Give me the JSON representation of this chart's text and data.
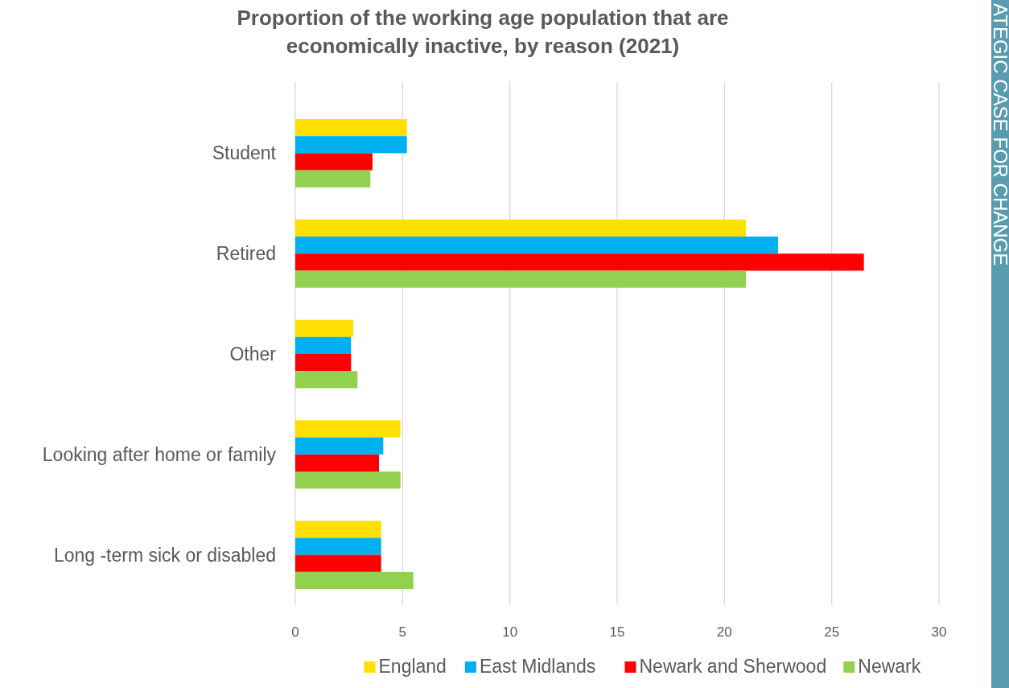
{
  "chart_data": {
    "type": "bar",
    "orientation": "horizontal",
    "title": "Proportion of the working age population that are economically inactive, by reason (2021)",
    "categories": [
      "Student",
      "Retired",
      "Other",
      "Looking after home or family",
      "Long -term sick or disabled"
    ],
    "series": [
      {
        "name": "England",
        "color": "#ffe000",
        "values": [
          5.2,
          21.0,
          2.7,
          4.9,
          4.0
        ]
      },
      {
        "name": "East Midlands",
        "color": "#00b0f0",
        "values": [
          5.2,
          22.5,
          2.6,
          4.1,
          4.0
        ]
      },
      {
        "name": "Newark and Sherwood",
        "color": "#ff0000",
        "values": [
          3.6,
          26.5,
          2.6,
          3.9,
          4.0
        ]
      },
      {
        "name": "Newark",
        "color": "#92d050",
        "values": [
          3.5,
          21.0,
          2.9,
          4.9,
          5.5
        ]
      }
    ],
    "xlim": [
      0,
      30
    ],
    "xticks": [
      0,
      5,
      10,
      15,
      20,
      25,
      30
    ],
    "grid": "x",
    "legend": "bottom",
    "annotations": [
      "ATEGIC CASE FOR CHANGE"
    ]
  }
}
